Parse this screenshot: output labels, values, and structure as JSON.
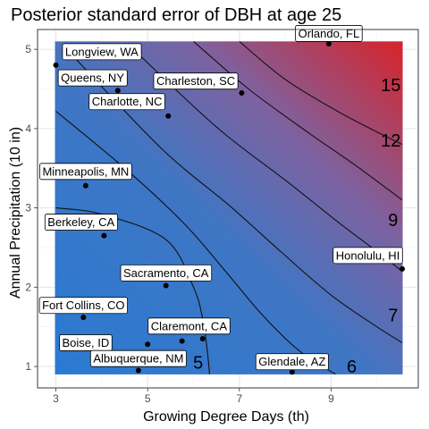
{
  "chart_data": {
    "type": "contour",
    "title": "Posterior standard error of DBH at age 25",
    "xlabel": "Growing Degree Days (th)",
    "ylabel": "Annual Precipitation (10 in)",
    "xlim": [
      2.6,
      10.9
    ],
    "ylim": [
      0.73,
      5.25
    ],
    "xticks": [
      3,
      5,
      7,
      9
    ],
    "yticks": [
      1,
      2,
      3,
      4,
      5
    ],
    "grid": true,
    "fill_gradient": {
      "low_color": "#2a7ad2",
      "high_color": "#d8232a",
      "direction": "bottom-left to top-right"
    },
    "contour_levels": [
      {
        "level": "5",
        "line": [
          [
            3.0,
            3.0
          ],
          [
            4.0,
            2.92
          ],
          [
            5.4,
            2.6
          ],
          [
            6.0,
            2.0
          ],
          [
            6.2,
            1.6
          ],
          [
            6.3,
            1.2
          ],
          [
            6.35,
            0.9
          ]
        ]
      },
      {
        "level": "6",
        "line": [
          [
            3.0,
            4.22
          ],
          [
            4.6,
            3.45
          ],
          [
            5.8,
            2.8
          ],
          [
            6.7,
            2.2
          ],
          [
            7.5,
            1.65
          ],
          [
            8.3,
            1.2
          ],
          [
            9.1,
            0.9
          ]
        ]
      },
      {
        "level": "7",
        "line": [
          [
            3.4,
            4.9
          ],
          [
            5.3,
            3.75
          ],
          [
            6.8,
            3.02
          ],
          [
            7.9,
            2.45
          ],
          [
            9.0,
            1.9
          ],
          [
            10.0,
            1.5
          ],
          [
            10.55,
            1.3
          ]
        ]
      },
      {
        "level": "9",
        "line": [
          [
            4.6,
            5.05
          ],
          [
            6.5,
            4.02
          ],
          [
            8.0,
            3.35
          ],
          [
            9.2,
            2.8
          ],
          [
            10.0,
            2.45
          ],
          [
            10.55,
            2.2
          ]
        ]
      },
      {
        "level": "12",
        "line": [
          [
            6.0,
            5.1
          ],
          [
            7.2,
            4.5
          ],
          [
            8.5,
            3.95
          ],
          [
            9.5,
            3.55
          ],
          [
            10.55,
            3.1
          ]
        ]
      },
      {
        "level": "15",
        "line": [
          [
            7.0,
            5.1
          ],
          [
            8.0,
            4.62
          ],
          [
            9.2,
            4.2
          ],
          [
            10.2,
            3.9
          ],
          [
            10.55,
            3.8
          ]
        ]
      }
    ],
    "contour_label_positions": [
      {
        "text": "15",
        "x": 10.3,
        "y": 4.55
      },
      {
        "text": "12",
        "x": 10.3,
        "y": 3.85
      },
      {
        "text": "9",
        "x": 10.35,
        "y": 2.85
      },
      {
        "text": "7",
        "x": 10.35,
        "y": 1.65
      },
      {
        "text": "6",
        "x": 9.45,
        "y": 1.0
      },
      {
        "text": "5",
        "x": 6.1,
        "y": 1.05
      }
    ],
    "points": [
      {
        "name": "Orlando, FL",
        "x": 8.95,
        "y": 5.07,
        "label_x": 8.95,
        "label_y": 5.2
      },
      {
        "name": "Longview, WA",
        "x": 3.0,
        "y": 4.8,
        "label_x": 4.0,
        "label_y": 4.97
      },
      {
        "name": "Queens, NY",
        "x": 4.35,
        "y": 4.48,
        "label_x": 3.8,
        "label_y": 4.64
      },
      {
        "name": "Charleston, SC",
        "x": 7.05,
        "y": 4.45,
        "label_x": 6.05,
        "label_y": 4.6
      },
      {
        "name": "Charlotte, NC",
        "x": 5.45,
        "y": 4.16,
        "label_x": 4.55,
        "label_y": 4.34
      },
      {
        "name": "Minneapolis, MN",
        "x": 3.65,
        "y": 3.28,
        "label_x": 3.65,
        "label_y": 3.46
      },
      {
        "name": "Berkeley, CA",
        "x": 4.05,
        "y": 2.65,
        "label_x": 3.55,
        "label_y": 2.82
      },
      {
        "name": "Honolulu, HI",
        "x": 10.55,
        "y": 2.23,
        "label_x": 9.8,
        "label_y": 2.4
      },
      {
        "name": "Sacramento, CA",
        "x": 5.4,
        "y": 2.02,
        "label_x": 5.4,
        "label_y": 2.18
      },
      {
        "name": "Fort Collins, CO",
        "x": 3.6,
        "y": 1.62,
        "label_x": 3.6,
        "label_y": 1.77
      },
      {
        "name": "Claremont, CA",
        "x": 6.2,
        "y": 1.35,
        "label_x": 5.9,
        "label_y": 1.51
      },
      {
        "name": "Boise, ID",
        "x": 5.0,
        "y": 1.28,
        "label_x": 3.65,
        "label_y": 1.3
      },
      {
        "name": "Albuquerque, NM",
        "x": 4.8,
        "y": 0.95,
        "label_x": 4.8,
        "label_y": 1.1
      },
      {
        "name": "Glendale, AZ",
        "x": 8.15,
        "y": 0.93,
        "label_x": 8.15,
        "label_y": 1.06
      },
      {
        "name": "",
        "x": 5.75,
        "y": 1.32
      }
    ]
  }
}
